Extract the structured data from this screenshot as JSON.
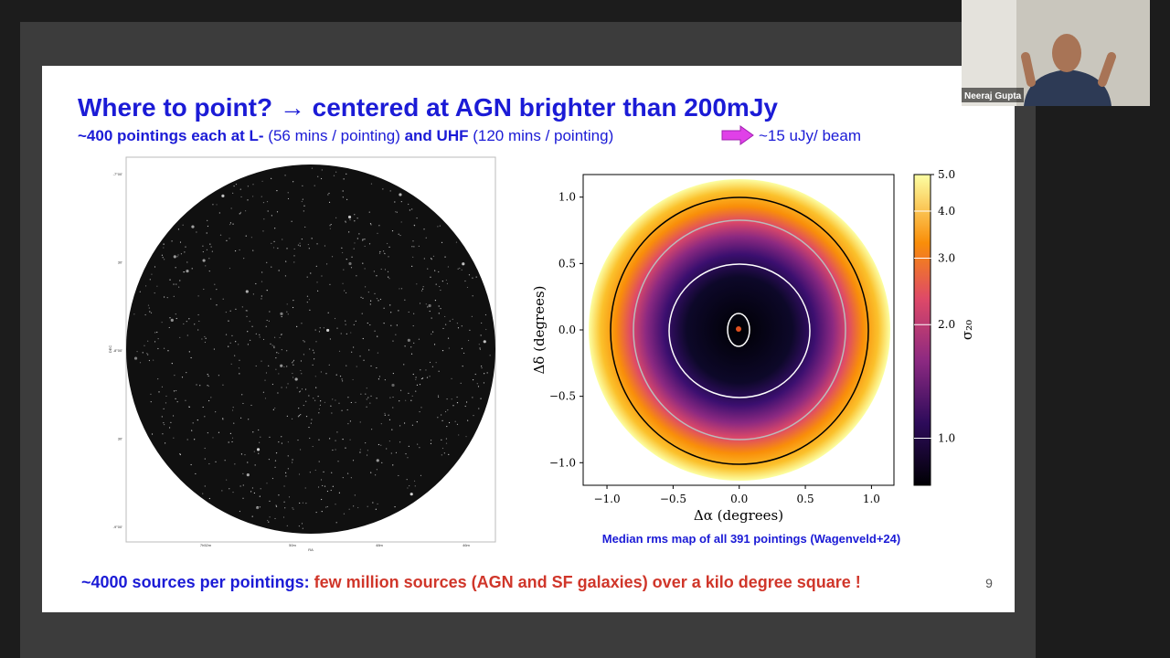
{
  "slide": {
    "title": "Where to point? → centered at AGN brighter than 200mJy",
    "subtitle": {
      "part1": "~400 pointings each at L-",
      "part2": " (56 mins / pointing)",
      "part3": " and UHF",
      "part4": " (120 mins / pointing)",
      "part5": "~15 uJy/ beam"
    },
    "left_image": {
      "xlabel": "RA",
      "ylabel": "DEC",
      "yticks": [
        "-7°00'",
        "30'",
        "-8°00'",
        "30'",
        "-9°00'"
      ],
      "xticks": [
        "7h52m",
        "50m",
        "48m",
        "46m"
      ]
    },
    "rms_map": {
      "type": "heatmap",
      "xlabel": "Δα (degrees)",
      "ylabel": "Δδ (degrees)",
      "xlim": [
        -1.18,
        1.17
      ],
      "ylim": [
        -1.17,
        1.17
      ],
      "xticks": [
        {
          "value": -1,
          "label": "−1.0"
        },
        {
          "value": -0.5,
          "label": "−0.5"
        },
        {
          "value": 0,
          "label": "0.0"
        },
        {
          "value": 0.5,
          "label": "0.5"
        },
        {
          "value": 1,
          "label": "1.0"
        }
      ],
      "yticks": [
        {
          "value": -1,
          "label": "−1.0"
        },
        {
          "value": -0.5,
          "label": "−0.5"
        },
        {
          "value": 0,
          "label": "0.0"
        },
        {
          "value": 0.5,
          "label": "0.5"
        },
        {
          "value": 1,
          "label": "1.0"
        }
      ],
      "colorbar": {
        "label": "σ₂₀",
        "scale": "log",
        "clim": [
          0.75,
          5.0
        ],
        "ticks": [
          {
            "value": 1,
            "label": "1.0"
          },
          {
            "value": 2,
            "label": "2.0"
          },
          {
            "value": 3,
            "label": "3.0"
          },
          {
            "value": 4,
            "label": "4.0"
          },
          {
            "value": 5,
            "label": "5.0"
          }
        ]
      },
      "caption": "Median rms map of all 391 pointings (Wagenveld+24)"
    },
    "footer": {
      "part1": "~4000 sources per pointings:",
      "part2": " few million sources (AGN and SF galaxies) over a kilo degree square !"
    },
    "page_number": "9"
  },
  "participant": {
    "name": "Neeraj Gupta"
  }
}
